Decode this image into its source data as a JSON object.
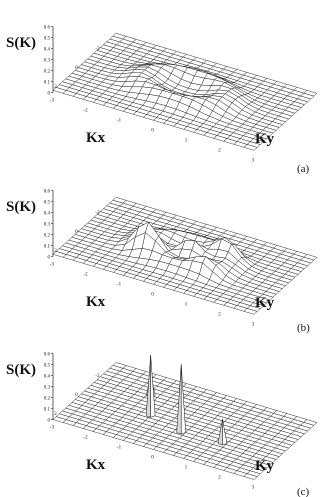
{
  "chart_data": [
    {
      "type": "surface",
      "panel": "(a)",
      "zlabel": "S(K)",
      "xlabel": "Kx",
      "ylabel": "Ky",
      "xlim": [
        -3,
        3
      ],
      "ylim": [
        -3,
        3
      ],
      "zlim": [
        0,
        0.6
      ],
      "z_ticks": [
        "0.6",
        "0.5",
        "0.4",
        "0.3",
        "0.2",
        "0.1",
        "0"
      ],
      "x_ticks": [
        "2",
        "0",
        "-2"
      ],
      "y_ticks": [
        "-3",
        "-2",
        "-1",
        "0",
        "1",
        "2",
        "3"
      ],
      "grid_n": 21,
      "background_level": 0.02,
      "features": [
        {
          "kind": "ring",
          "radius": 1.2,
          "width": 0.55,
          "height": 0.09
        }
      ]
    },
    {
      "type": "surface",
      "panel": "(b)",
      "zlabel": "S(K)",
      "xlabel": "Kx",
      "ylabel": "Ky",
      "xlim": [
        -3,
        3
      ],
      "ylim": [
        -3,
        3
      ],
      "zlim": [
        0,
        0.6
      ],
      "z_ticks": [
        "0.6",
        "0.5",
        "0.4",
        "0.3",
        "0.2",
        "0.1",
        "0"
      ],
      "x_ticks": [
        "2",
        "0",
        "-2"
      ],
      "y_ticks": [
        "-3",
        "-2",
        "-1",
        "0",
        "1",
        "2",
        "3"
      ],
      "grid_n": 21,
      "background_level": 0.02,
      "features": [
        {
          "kind": "ring",
          "radius": 1.2,
          "width": 0.5,
          "height": 0.08
        },
        {
          "kind": "peak",
          "kx": 0.6,
          "ky": -0.9,
          "height": 0.2,
          "width": 0.32
        },
        {
          "kind": "peak",
          "kx": 0.0,
          "ky": 0.2,
          "height": 0.17,
          "width": 0.3
        },
        {
          "kind": "peak",
          "kx": -0.7,
          "ky": 1.0,
          "height": 0.12,
          "width": 0.3
        },
        {
          "kind": "peak",
          "kx": 1.0,
          "ky": 0.9,
          "height": 0.08,
          "width": 0.3
        }
      ]
    },
    {
      "type": "surface",
      "panel": "(c)",
      "zlabel": "S(K)",
      "xlabel": "Kx",
      "ylabel": "Ky",
      "xlim": [
        -3,
        3
      ],
      "ylim": [
        -3,
        3
      ],
      "zlim": [
        0,
        0.6
      ],
      "z_ticks": [
        "0.6",
        "0.5",
        "0.4",
        "0.3",
        "0.2",
        "0.1",
        "0"
      ],
      "x_ticks": [
        "2",
        "0",
        "-2"
      ],
      "y_ticks": [
        "-3",
        "-2",
        "-1",
        "0",
        "1",
        "2",
        "3"
      ],
      "grid_n": 21,
      "background_level": 0.0,
      "features": [
        {
          "kind": "spike",
          "kx": -1.2,
          "ky": -1.4,
          "height": 0.18
        },
        {
          "kind": "spike",
          "kx": 0.4,
          "ky": -0.9,
          "height": 0.55
        },
        {
          "kind": "spike",
          "kx": 1.0,
          "ky": 0.2,
          "height": 0.62
        },
        {
          "kind": "spike",
          "kx": 0.9,
          "ky": 1.4,
          "height": 0.22
        }
      ]
    }
  ]
}
